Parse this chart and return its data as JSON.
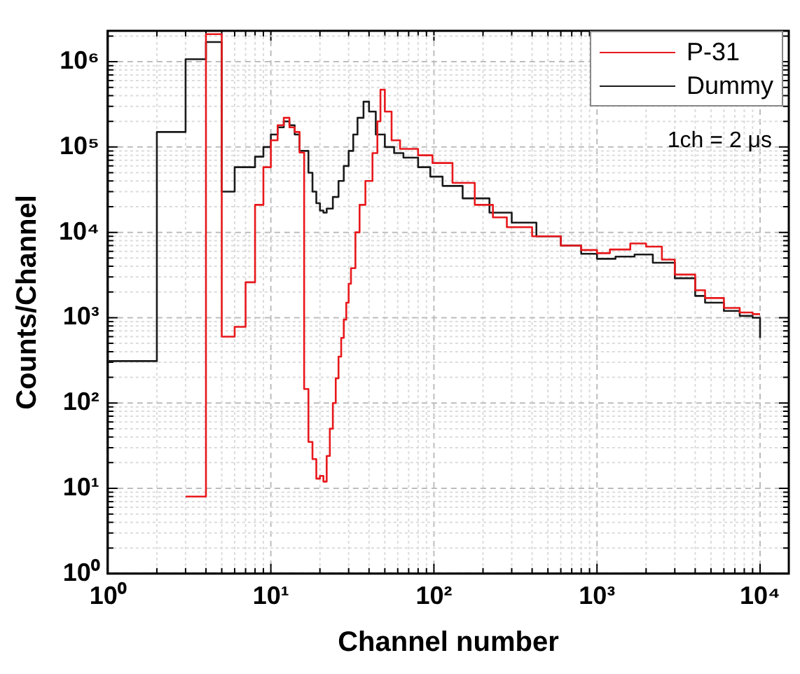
{
  "chart_data": {
    "type": "step",
    "xlabel": "Channel number",
    "ylabel": "Counts/Channel",
    "log": "xy",
    "grid": true,
    "legend": "top right",
    "marker": "none",
    "line_style": "solid",
    "xlim": [
      1,
      15000
    ],
    "ylim": [
      1,
      2300000
    ],
    "xticks": [
      {
        "value": 1,
        "label": "10⁰"
      },
      {
        "value": 10,
        "label": "10¹"
      },
      {
        "value": 100,
        "label": "10²"
      },
      {
        "value": 1000,
        "label": "10³"
      },
      {
        "value": 10000,
        "label": "10⁴"
      }
    ],
    "yticks": [
      {
        "value": 1,
        "label": "10⁰"
      },
      {
        "value": 10,
        "label": "10¹"
      },
      {
        "value": 100,
        "label": "10²"
      },
      {
        "value": 1000,
        "label": "10³"
      },
      {
        "value": 10000,
        "label": "10⁴"
      },
      {
        "value": 100000,
        "label": "10⁵"
      },
      {
        "value": 1000000,
        "label": "10⁶"
      }
    ],
    "annotations": [
      "1ch = 2 μs"
    ],
    "series": [
      {
        "name": "P-31",
        "color": "#e8181c",
        "x": [
          3,
          4,
          5,
          6,
          7,
          8,
          9,
          10,
          11,
          12,
          13,
          14,
          15,
          16,
          17,
          18,
          19,
          20,
          21,
          22,
          23,
          24,
          25,
          26,
          27,
          28,
          29,
          30,
          31,
          33,
          35,
          38,
          42,
          45,
          47,
          50,
          55,
          62,
          80,
          98,
          130,
          178,
          230,
          280,
          400,
          600,
          800,
          1000,
          1200,
          1600,
          2000,
          2500,
          3000,
          4000,
          4600,
          6000,
          7500,
          9000,
          10000
        ],
        "values": [
          8,
          2100000,
          600,
          780,
          2600,
          21000,
          58000,
          120000,
          180000,
          220000,
          170000,
          150000,
          86000,
          146,
          35,
          22,
          13,
          14,
          12,
          24,
          50,
          100,
          195,
          350,
          580,
          950,
          1500,
          2500,
          3800,
          10000,
          21000,
          40000,
          85000,
          200000,
          470000,
          260000,
          120000,
          95000,
          80000,
          65000,
          38000,
          21000,
          15000,
          11500,
          9000,
          7000,
          6200,
          5700,
          6300,
          7400,
          6800,
          4800,
          3200,
          2100,
          1700,
          1300,
          1150,
          1100,
          1100
        ]
      },
      {
        "name": "Dummy",
        "color": "#1a1a1a",
        "x": [
          1,
          2,
          3,
          4,
          5,
          6,
          8,
          9,
          10,
          11,
          12,
          13,
          14,
          15,
          17,
          18,
          19,
          20,
          21,
          22,
          24,
          26,
          28,
          30,
          32,
          34,
          37,
          40,
          44,
          50,
          57,
          65,
          80,
          95,
          113,
          150,
          219,
          300,
          425,
          600,
          800,
          1000,
          1300,
          1700,
          2200,
          3000,
          4000,
          4600,
          6000,
          7500,
          9000,
          10000
        ],
        "values": [
          310,
          150000,
          1070000,
          1700000,
          30000,
          58000,
          77000,
          100000,
          140000,
          170000,
          200000,
          180000,
          140000,
          90000,
          50000,
          30000,
          22000,
          18000,
          17000,
          19000,
          26000,
          40000,
          60000,
          90000,
          140000,
          220000,
          340000,
          260000,
          140000,
          100000,
          85000,
          75000,
          58000,
          45000,
          35000,
          25000,
          17000,
          13000,
          9000,
          7000,
          5600,
          4900,
          5200,
          5500,
          4400,
          2900,
          1800,
          1500,
          1200,
          1050,
          1000,
          580
        ]
      }
    ]
  }
}
